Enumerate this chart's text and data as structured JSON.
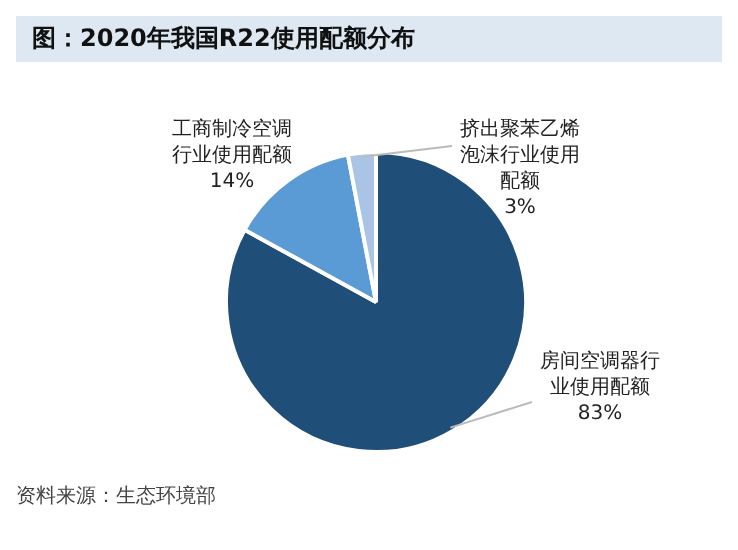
{
  "chart_data": {
    "type": "pie",
    "title": "图：2020年我国R22使用配额分布",
    "categories": [
      "房间空调器行业使用配额",
      "工商制冷空调行业使用配额",
      "挤出聚苯乙烯泡沫行业使用配额"
    ],
    "values": [
      83,
      14,
      3
    ],
    "colors": [
      "#1f4e79",
      "#5b9bd5",
      "#a9c4e4"
    ],
    "value_labels": [
      "83%",
      "14%",
      "3%"
    ],
    "annotations": [
      "资料来源：生态环境部"
    ]
  }
}
